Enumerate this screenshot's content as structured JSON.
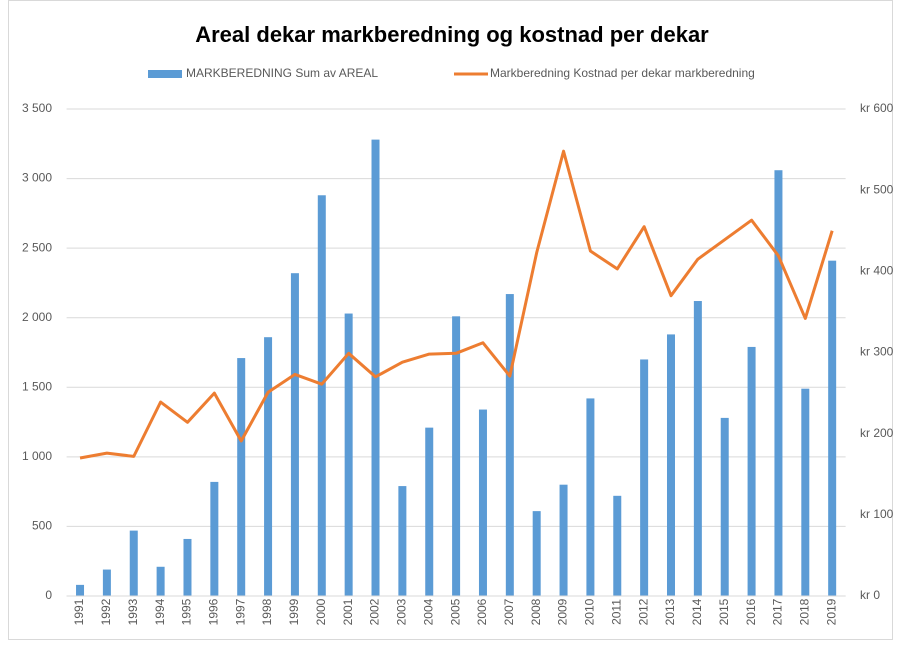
{
  "chart_data": {
    "type": "bar_line",
    "title": "Areal dekar markberedning og kostnad per dekar",
    "categories": [
      "1991",
      "1992",
      "1993",
      "1994",
      "1995",
      "1996",
      "1997",
      "1998",
      "1999",
      "2000",
      "2001",
      "2002",
      "2003",
      "2004",
      "2005",
      "2006",
      "2007",
      "2008",
      "2009",
      "2010",
      "2011",
      "2012",
      "2013",
      "2014",
      "2015",
      "2016",
      "2017",
      "2018",
      "2019"
    ],
    "series": [
      {
        "name": "MARKBEREDNING Sum av AREAL",
        "type": "bar",
        "color": "#5b9bd5",
        "values": [
          80,
          190,
          470,
          210,
          410,
          820,
          1710,
          1860,
          2320,
          2880,
          2030,
          3280,
          790,
          1210,
          2010,
          1340,
          2170,
          610,
          800,
          1420,
          720,
          1700,
          1880,
          2120,
          1280,
          1790,
          3060,
          1490,
          2410
        ]
      },
      {
        "name": "Markberedning Kostnad per dekar markberedning",
        "type": "line",
        "color": "#ed7d31",
        "axis": "y2",
        "values": [
          170,
          176,
          172,
          239,
          214,
          250,
          191,
          251,
          273,
          261,
          299,
          270,
          288,
          298,
          299,
          312,
          271,
          423,
          548,
          425,
          403,
          455,
          370,
          415,
          439,
          463,
          419,
          342,
          450
        ]
      }
    ],
    "ylim": [
      0,
      3500
    ],
    "yticks": [
      0,
      500,
      {
        "value": 1000,
        "label": "1 000"
      },
      {
        "value": 1500,
        "label": "1 500"
      },
      {
        "value": 2000,
        "label": "2 000"
      },
      {
        "value": 2500,
        "label": "2 500"
      },
      {
        "value": 3000,
        "label": "3 000"
      },
      {
        "value": 3500,
        "label": "3 500"
      }
    ],
    "y2lim": [
      0,
      600
    ],
    "y2ticks": [
      {
        "value": 0,
        "label": "kr 0"
      },
      {
        "value": 100,
        "label": "kr 100"
      },
      {
        "value": 200,
        "label": "kr 200"
      },
      {
        "value": 300,
        "label": "kr 300"
      },
      {
        "value": 400,
        "label": "kr 400"
      },
      {
        "value": 500,
        "label": "kr 500"
      },
      {
        "value": 600,
        "label": "kr 600"
      }
    ],
    "grid": true,
    "legend": "top"
  }
}
